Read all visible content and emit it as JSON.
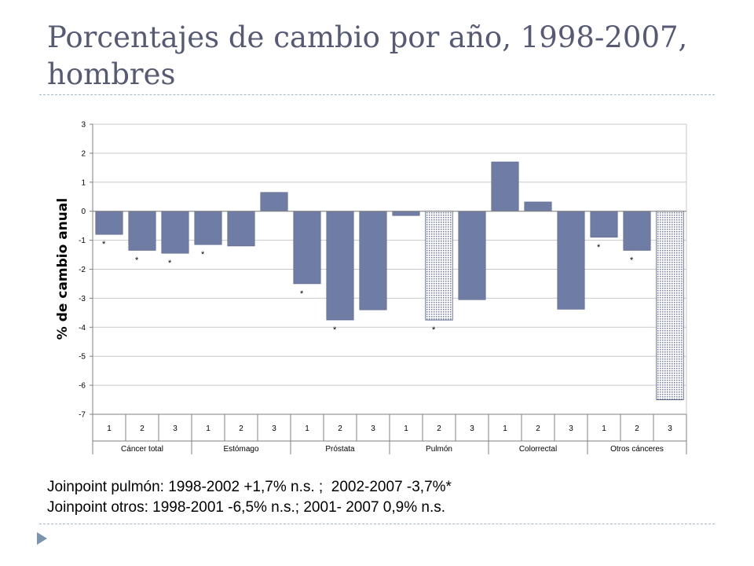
{
  "title": "Porcentajes de cambio por año, 1998-2007, hombres",
  "chart_data": {
    "type": "bar",
    "title": "",
    "ylabel": "% de cambio anual",
    "xlabel": "",
    "ylim": [
      -7,
      3
    ],
    "yticks": [
      3,
      2,
      1,
      0,
      -1,
      -2,
      -3,
      -4,
      -5,
      -6,
      -7
    ],
    "grid": true,
    "groups": [
      "Cáncer total",
      "Estómago",
      "Próstata",
      "Pulmón",
      "Colorrectal",
      "Otros cánceres"
    ],
    "subcategories": [
      "1",
      "2",
      "3"
    ],
    "values": [
      -0.8,
      -1.35,
      -1.45,
      -1.15,
      -1.2,
      0.65,
      -2.5,
      -3.75,
      -3.4,
      -0.15,
      -3.75,
      -3.05,
      1.7,
      0.32,
      -3.38,
      -0.9,
      -1.35,
      -6.5
    ],
    "patterned": [
      false,
      false,
      false,
      false,
      false,
      false,
      false,
      false,
      false,
      false,
      true,
      false,
      false,
      false,
      false,
      false,
      false,
      true
    ],
    "significant": [
      true,
      true,
      true,
      true,
      false,
      false,
      true,
      true,
      false,
      false,
      true,
      false,
      false,
      false,
      false,
      true,
      true,
      false
    ],
    "significance_mark": "*",
    "colors": {
      "bar": "#6f7ca3",
      "bar_edge": "#4a557a",
      "pattern": "#6f7ca3",
      "grid": "#c9c9c9",
      "axis": "#808080"
    }
  },
  "notes": [
    "Joinpoint pulmón: 1998-2002 +1,7% n.s. ;  2002-2007 -3,7%*",
    "Joinpoint otros: 1998-2001 -6,5% n.s.; 2001- 2007 0,9% n.s."
  ]
}
